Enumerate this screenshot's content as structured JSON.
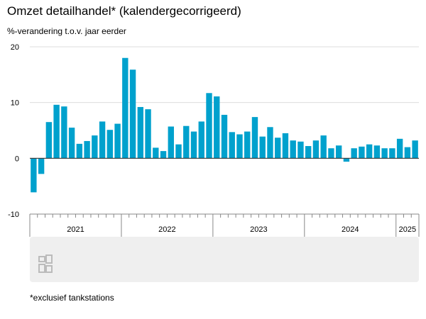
{
  "title": "Omzet detailhandel* (kalendergecorrigeerd)",
  "subtitle": "%-verandering t.o.v. jaar eerder",
  "footnote": "*exclusief tankstations",
  "colors": {
    "bar": "#00a1cd",
    "grid": "#dddddd",
    "zero_line": "#333333",
    "panel": "#efefef",
    "logo": "#bbbbbb"
  },
  "logo_icon": "cbs-logo-icon",
  "chart_data": {
    "type": "bar",
    "ylim": [
      -10,
      20
    ],
    "yticks": [
      20,
      10,
      0,
      -10
    ],
    "year_labels": [
      "2021",
      "2022",
      "2023",
      "2024",
      "2025"
    ],
    "categories": [
      "2021-01",
      "2021-02",
      "2021-03",
      "2021-04",
      "2021-05",
      "2021-06",
      "2021-07",
      "2021-08",
      "2021-09",
      "2021-10",
      "2021-11",
      "2021-12",
      "2022-01",
      "2022-02",
      "2022-03",
      "2022-04",
      "2022-05",
      "2022-06",
      "2022-07",
      "2022-08",
      "2022-09",
      "2022-10",
      "2022-11",
      "2022-12",
      "2023-01",
      "2023-02",
      "2023-03",
      "2023-04",
      "2023-05",
      "2023-06",
      "2023-07",
      "2023-08",
      "2023-09",
      "2023-10",
      "2023-11",
      "2023-12",
      "2024-01",
      "2024-02",
      "2024-03",
      "2024-04",
      "2024-05",
      "2024-06",
      "2024-07",
      "2024-08",
      "2024-09",
      "2024-10",
      "2024-11",
      "2024-12",
      "2025-01",
      "2025-02",
      "2025-03"
    ],
    "values": [
      -6.1,
      -2.8,
      6.5,
      9.6,
      9.3,
      5.5,
      2.6,
      3.1,
      4.1,
      6.6,
      5.1,
      6.2,
      18.0,
      15.9,
      9.2,
      8.8,
      1.9,
      1.3,
      5.7,
      2.5,
      5.8,
      4.8,
      6.6,
      11.7,
      11.1,
      7.8,
      4.7,
      4.3,
      4.8,
      7.4,
      3.9,
      5.6,
      3.7,
      4.5,
      3.2,
      3.0,
      2.2,
      3.2,
      4.1,
      1.8,
      2.3,
      -0.6,
      1.8,
      2.1,
      2.5,
      2.3,
      1.8,
      1.8,
      3.5,
      2.0,
      3.2
    ]
  }
}
